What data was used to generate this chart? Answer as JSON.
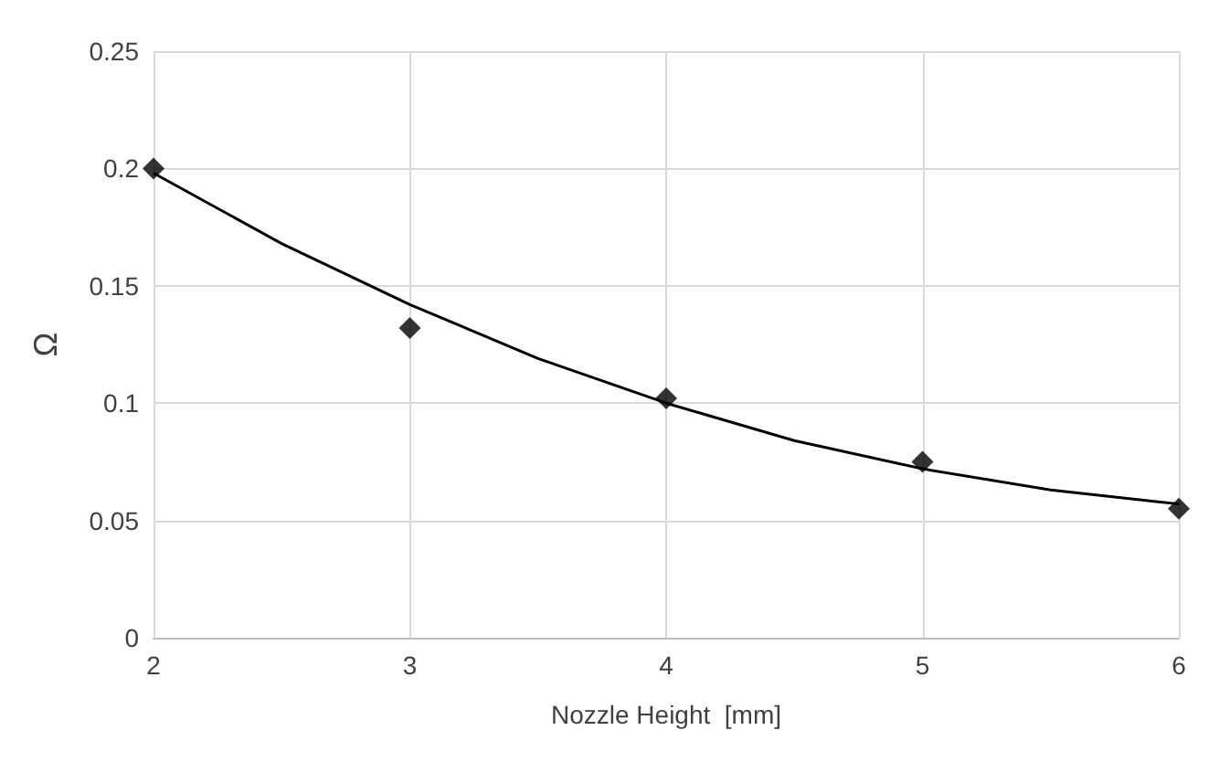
{
  "chart_data": {
    "type": "scatter",
    "xlabel": "Nozzle Height  [mm]",
    "ylabel": "Ω",
    "grid": true,
    "xlim": [
      2,
      6
    ],
    "xticks": [
      2,
      3,
      4,
      5,
      6
    ],
    "ylim": [
      0,
      0.25
    ],
    "yticks": [
      0,
      0.05,
      0.1,
      0.15,
      0.2,
      0.25
    ],
    "series": [
      {
        "color": "#000000",
        "marker": "diamond",
        "x": [
          2,
          3,
          4,
          5,
          6
        ],
        "values": [
          0.2,
          0.132,
          0.102,
          0.075,
          0.055
        ]
      },
      {
        "type": "line",
        "color": "#000000",
        "marker": "none",
        "x": [
          2,
          2.5,
          3,
          3.5,
          4,
          4.5,
          5,
          5.5,
          6
        ],
        "values": [
          0.198,
          0.168,
          0.142,
          0.119,
          0.1,
          0.084,
          0.072,
          0.063,
          0.057
        ]
      }
    ]
  }
}
